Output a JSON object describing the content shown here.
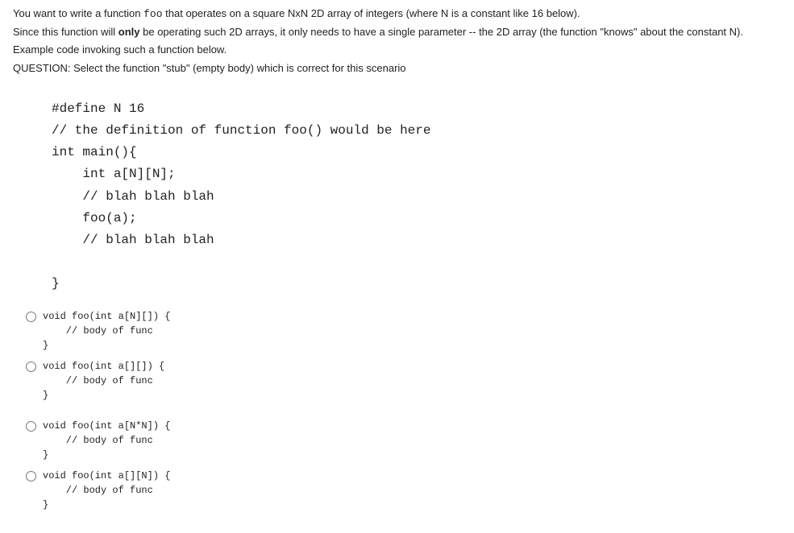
{
  "question": {
    "line1_pre": "You want to write a function ",
    "line1_mono": "foo",
    "line1_post": " that operates on a square NxN 2D array of integers (where N is a constant like 16 below).",
    "line2_pre": "Since this function will ",
    "line2_bold": "only",
    "line2_post": " be operating such 2D arrays, it only needs to have a single parameter -- the 2D array (the function \"knows\" about the constant N).",
    "line3": "Example code invoking such a function below.",
    "line4": "QUESTION:  Select the function \"stub\" (empty body) which is correct for this scenario"
  },
  "code_block": "#define N 16\n// the definition of function foo() would be here\nint main(){\n    int a[N][N];\n    // blah blah blah\n    foo(a);\n    // blah blah blah\n\n}",
  "options": [
    "void foo(int a[N][]) {\n    // body of func\n}",
    "void foo(int a[][]) {\n    // body of func\n}",
    "void foo(int a[N*N]) {\n    // body of func\n}",
    "void foo(int a[][N]) {\n    // body of func\n}"
  ],
  "styling": {
    "body_font_size": 13,
    "code_block_font_size": 16,
    "option_code_font_size": 12,
    "text_color": "#222222",
    "background_color": "#ffffff",
    "font_family_body": "Arial, Helvetica, sans-serif",
    "font_family_mono": "Courier New, Courier, monospace"
  }
}
